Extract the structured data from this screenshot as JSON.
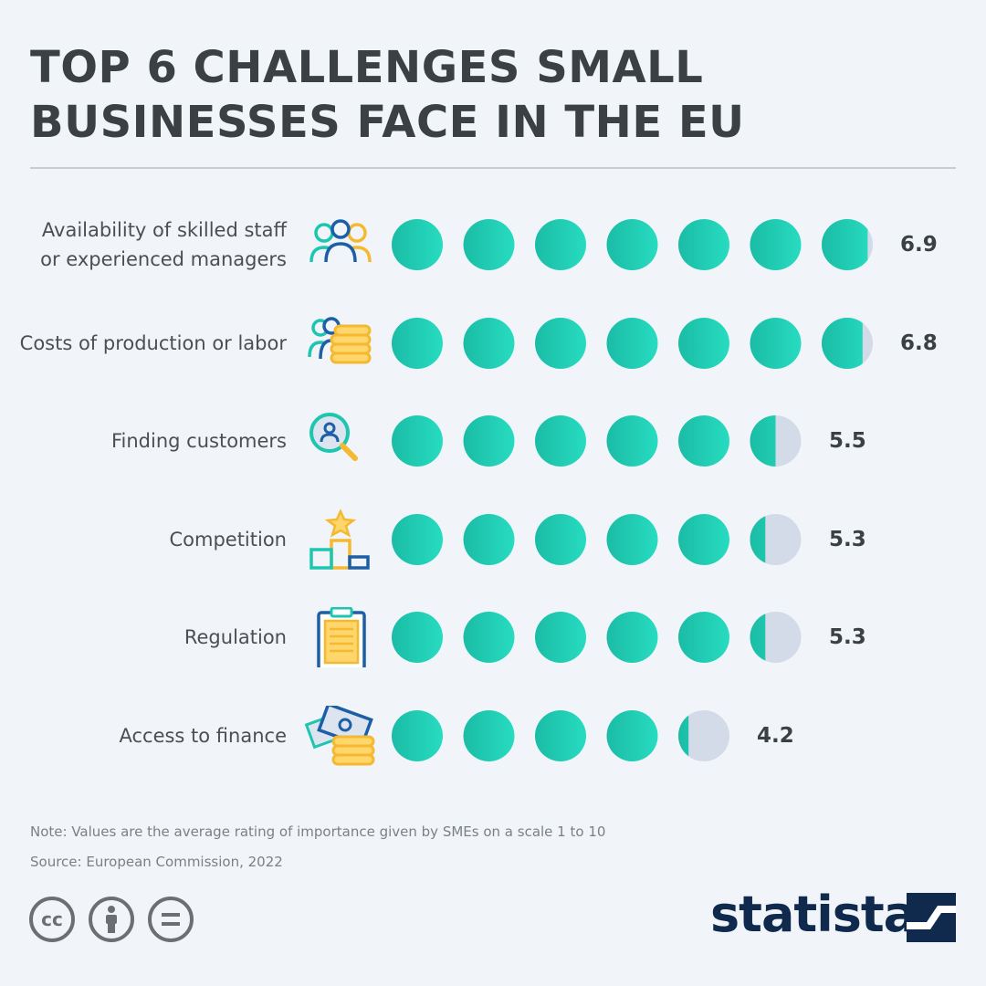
{
  "title_lines": [
    "TOP 6 CHALLENGES SMALL",
    "BUSINESSES FACE IN THE EU"
  ],
  "colors": {
    "dot": "#1ecfb0",
    "dot_light": "#27dcc0",
    "empty": "#d3dbe8",
    "text": "#3b4043"
  },
  "chart_data": {
    "type": "pictogram-bar",
    "title": "TOP 6 CHALLENGES SMALL BUSINESSES FACE IN THE EU",
    "unit": "average rating of importance (scale 1 to 10)",
    "categories": [
      "Availability of skilled staff or experienced managers",
      "Costs of production or labor",
      "Finding customers",
      "Competition",
      "Regulation",
      "Access to finance"
    ],
    "values": [
      6.9,
      6.8,
      5.5,
      5.3,
      5.3,
      4.2
    ],
    "value_labels": [
      "6.9",
      "6.8",
      "5.5",
      "5.3",
      "5.3",
      "4.2"
    ]
  },
  "rows": [
    {
      "label_lines": [
        "Availability of skilled staff",
        "or experienced managers"
      ],
      "icon": "people-icon"
    },
    {
      "label_lines": [
        "Costs of production or labor"
      ],
      "icon": "people-coins-icon"
    },
    {
      "label_lines": [
        "Finding customers"
      ],
      "icon": "search-person-icon"
    },
    {
      "label_lines": [
        "Competition"
      ],
      "icon": "podium-star-icon"
    },
    {
      "label_lines": [
        "Regulation"
      ],
      "icon": "clipboard-icon"
    },
    {
      "label_lines": [
        "Access to finance"
      ],
      "icon": "money-coins-icon"
    }
  ],
  "note": "Note: Values are the average rating of importance given by SMEs on a scale 1 to 10",
  "source": "Source: European Commission, 2022",
  "license_icons": [
    "cc-icon",
    "attribution-icon",
    "no-derivatives-icon"
  ],
  "brand": "statista"
}
